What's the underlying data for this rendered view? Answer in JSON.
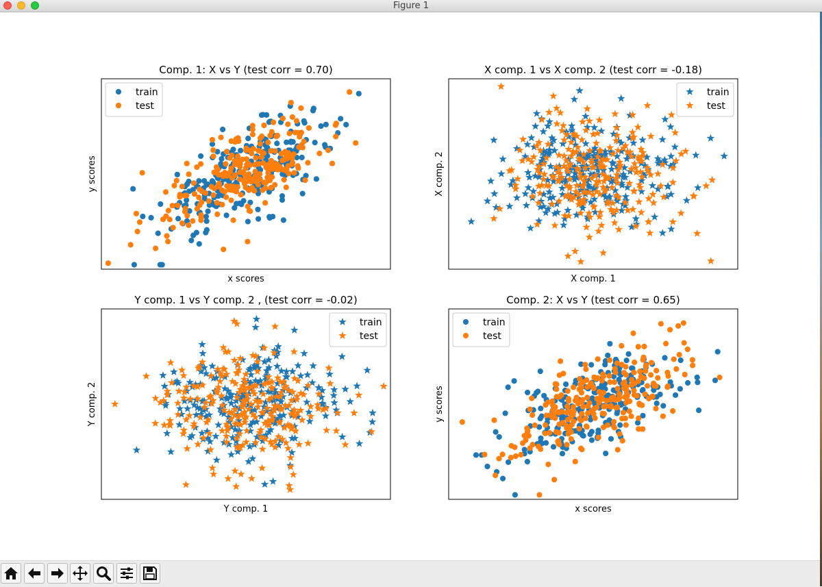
{
  "window": {
    "title": "Figure 1"
  },
  "colors": {
    "train": "#1f77b4",
    "test": "#ff7f0e"
  },
  "toolbar": {
    "buttons": [
      {
        "name": "home-icon"
      },
      {
        "name": "back-arrow-icon"
      },
      {
        "name": "forward-arrow-icon"
      },
      {
        "name": "pan-icon"
      },
      {
        "name": "zoom-icon"
      },
      {
        "name": "configure-subplots-icon"
      },
      {
        "name": "save-icon"
      }
    ]
  },
  "chart_data": [
    {
      "type": "scatter",
      "title": "Comp. 1: X vs Y (test corr = 0.70)",
      "xlabel": "x scores",
      "ylabel": "y scores",
      "marker": "circle",
      "legend_position": "top-left",
      "xticks": false,
      "yticks": false,
      "series": [
        {
          "name": "train",
          "color": "#1f77b4",
          "n_points": 250,
          "correlation": 0.7,
          "x": [
            -2.5,
            -1.5,
            -1.0,
            1.5,
            2.5
          ],
          "y": [
            -0.5,
            -1.5,
            0.6,
            2.2,
            2.7
          ]
        },
        {
          "name": "test",
          "color": "#ff7f0e",
          "n_points": 250,
          "correlation": 0.7,
          "x": [
            -2.0,
            -1.3,
            0.0,
            1.0,
            2.0
          ],
          "y": [
            -2.5,
            -1.4,
            0.2,
            2.4,
            1.7
          ]
        }
      ]
    },
    {
      "type": "scatter",
      "title": "X comp. 1 vs X comp. 2 (test corr = -0.18)",
      "xlabel": "X comp. 1",
      "ylabel": "X comp. 2",
      "marker": "star",
      "legend_position": "top-right",
      "xticks": false,
      "yticks": false,
      "series": [
        {
          "name": "train",
          "color": "#1f77b4",
          "n_points": 250,
          "correlation": 0.0,
          "x": [
            -2.7,
            -2.0,
            -0.3,
            2.9,
            2.6
          ],
          "y": [
            -1.6,
            0.5,
            2.8,
            0.6,
            1.2
          ]
        },
        {
          "name": "test",
          "color": "#ff7f0e",
          "n_points": 250,
          "correlation": -0.18,
          "x": [
            -2.2,
            -0.4,
            2.3,
            1.2,
            2.5
          ],
          "y": [
            -1.5,
            -2.6,
            -2.0,
            2.3,
            -0.4
          ]
        }
      ]
    },
    {
      "type": "scatter",
      "title": "Y comp. 1 vs Y comp. 2 , (test corr = -0.02)",
      "xlabel": "Y comp. 1",
      "ylabel": "Y comp. 2",
      "marker": "star",
      "legend_position": "top-right",
      "xticks": false,
      "yticks": false,
      "series": [
        {
          "name": "train",
          "color": "#1f77b4",
          "n_points": 250,
          "correlation": 0.0,
          "x": [
            -1.8,
            0.6,
            2.0,
            2.8,
            2.2
          ],
          "y": [
            0.6,
            -2.6,
            -0.2,
            -0.6,
            0.5
          ]
        },
        {
          "name": "test",
          "color": "#ff7f0e",
          "n_points": 250,
          "correlation": -0.02,
          "x": [
            -2.9,
            -0.2,
            2.5,
            -0.5,
            2.0
          ],
          "y": [
            0.0,
            2.7,
            0.3,
            1.9,
            -0.9
          ]
        }
      ]
    },
    {
      "type": "scatter",
      "title": "Comp. 2: X vs Y (test corr = 0.65)",
      "xlabel": "x scores",
      "ylabel": "y scores",
      "marker": "circle",
      "legend_position": "top-left",
      "xticks": false,
      "yticks": false,
      "series": [
        {
          "name": "train",
          "color": "#1f77b4",
          "n_points": 250,
          "correlation": 0.65,
          "x": [
            -2.0,
            -1.4,
            0.5,
            2.3,
            2.7
          ],
          "y": [
            -2.5,
            -1.6,
            1.5,
            0.9,
            0.8
          ]
        },
        {
          "name": "test",
          "color": "#ff7f0e",
          "n_points": 250,
          "correlation": 0.65,
          "x": [
            -2.9,
            -1.6,
            1.5,
            2.2,
            1.7
          ],
          "y": [
            -0.6,
            -1.7,
            2.7,
            1.3,
            2.5
          ]
        }
      ]
    }
  ]
}
